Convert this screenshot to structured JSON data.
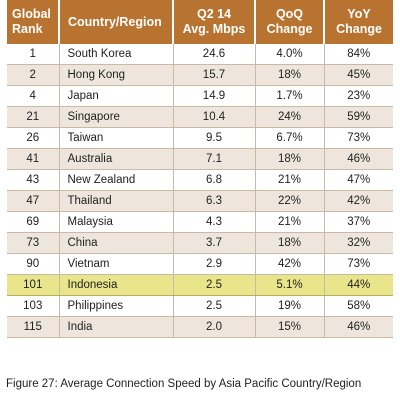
{
  "table": {
    "headers": {
      "rank": [
        "Global",
        "Rank"
      ],
      "country": "Country/Region",
      "speed": [
        "Q2 14",
        "Avg. Mbps"
      ],
      "qoq": [
        "QoQ",
        "Change"
      ],
      "yoy": [
        "YoY",
        "Change"
      ]
    },
    "rows": [
      {
        "rank": "1",
        "country": "South Korea",
        "speed": "24.6",
        "qoq": "4.0%",
        "yoy": "84%"
      },
      {
        "rank": "2",
        "country": "Hong Kong",
        "speed": "15.7",
        "qoq": "18%",
        "yoy": "45%"
      },
      {
        "rank": "4",
        "country": "Japan",
        "speed": "14.9",
        "qoq": "1.7%",
        "yoy": "23%"
      },
      {
        "rank": "21",
        "country": "Singapore",
        "speed": "10.4",
        "qoq": "24%",
        "yoy": "59%"
      },
      {
        "rank": "26",
        "country": "Taiwan",
        "speed": "9.5",
        "qoq": "6.7%",
        "yoy": "73%"
      },
      {
        "rank": "41",
        "country": "Australia",
        "speed": "7.1",
        "qoq": "18%",
        "yoy": "46%"
      },
      {
        "rank": "43",
        "country": "New Zealand",
        "speed": "6.8",
        "qoq": "21%",
        "yoy": "47%"
      },
      {
        "rank": "47",
        "country": "Thailand",
        "speed": "6.3",
        "qoq": "22%",
        "yoy": "42%"
      },
      {
        "rank": "69",
        "country": "Malaysia",
        "speed": "4.3",
        "qoq": "21%",
        "yoy": "37%"
      },
      {
        "rank": "73",
        "country": "China",
        "speed": "3.7",
        "qoq": "18%",
        "yoy": "32%"
      },
      {
        "rank": "90",
        "country": "Vietnam",
        "speed": "2.9",
        "qoq": "42%",
        "yoy": "73%"
      },
      {
        "rank": "101",
        "country": "Indonesia",
        "speed": "2.5",
        "qoq": "5.1%",
        "yoy": "44%"
      },
      {
        "rank": "103",
        "country": "Philippines",
        "speed": "2.5",
        "qoq": "19%",
        "yoy": "58%"
      },
      {
        "rank": "115",
        "country": "India",
        "speed": "2.0",
        "qoq": "15%",
        "yoy": "46%"
      }
    ],
    "highlighted_country": "Indonesia"
  },
  "caption": "Figure 27: Average Connection Speed by Asia Pacific Country/Region",
  "colors": {
    "header_bg": "#b7732f",
    "header_text": "#ffffff",
    "row_tint": "#eee6dc",
    "highlight": "#e9e58a"
  }
}
